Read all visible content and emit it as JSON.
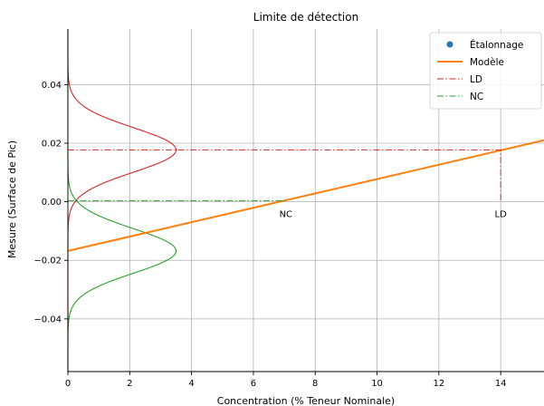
{
  "chart_data": {
    "type": "line",
    "title": "Limite de détection",
    "xlabel": "Concentration (% Teneur Nominale)",
    "ylabel": "Mesure (Surface de Pic)",
    "xlim": [
      0,
      15.4
    ],
    "ylim": [
      -0.058,
      0.059
    ],
    "xticks": [
      0,
      2,
      4,
      6,
      8,
      10,
      12,
      14
    ],
    "yticks": [
      -0.04,
      -0.02,
      0.0,
      0.02,
      0.04
    ],
    "ytick_labels": [
      "−0.04",
      "−0.02",
      "0.00",
      "0.02",
      "0.04"
    ],
    "grid": true,
    "legend_position": "top-right",
    "series": [
      {
        "name": "Étalonnage",
        "type": "scatter",
        "color": "#1f77b4",
        "x": [],
        "y": []
      },
      {
        "name": "Modèle",
        "type": "line",
        "color": "#ff7f0e",
        "x": [
          0,
          15.4
        ],
        "y": [
          -0.0168,
          0.021
        ]
      },
      {
        "name": "LD",
        "type": "dashdot",
        "color": "#d62728",
        "x": [
          0,
          14.0,
          14.0
        ],
        "y": [
          0.0177,
          0.0177,
          0.0
        ]
      },
      {
        "name": "NC",
        "type": "dashdot",
        "color": "#2ca02c",
        "x": [
          0,
          7.05
        ],
        "y": [
          0.0004,
          0.0004
        ]
      }
    ],
    "distributions": [
      {
        "color": "#d62728",
        "mean": 0.0177,
        "sd": 0.0076,
        "peak_x": 3.5
      },
      {
        "color": "#2ca02c",
        "mean": -0.0168,
        "sd": 0.0076,
        "peak_x": 3.5
      }
    ],
    "annotations": [
      {
        "text": "NC",
        "x": 7.05,
        "y": -0.0025
      },
      {
        "text": "LD",
        "x": 14.0,
        "y": -0.0025
      }
    ]
  }
}
